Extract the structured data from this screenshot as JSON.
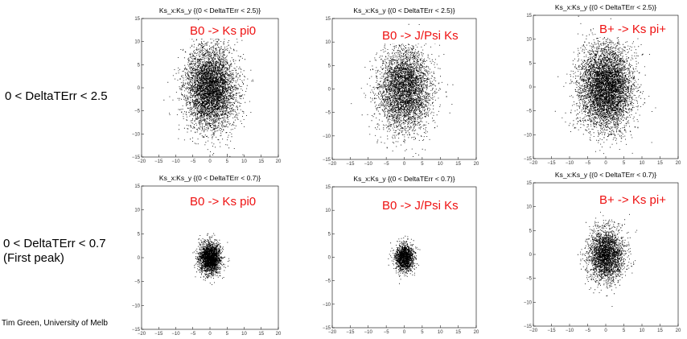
{
  "row_labels": [
    [
      "0 < DeltaTErr < 2.5"
    ],
    [
      "0 < DeltaTErr < 0.7",
      "(First peak)"
    ]
  ],
  "footer": "Tim Green, University of Melb",
  "colors": {
    "decay_label": "#ee1111",
    "points": "#000000",
    "frame": "#000000"
  },
  "chart_data": [
    {
      "type": "scatter",
      "title": "Ks_x:Ks_y {(0 < DeltaTErr < 2.5)}",
      "decay": "B0 -> Ks pi0",
      "xlim": [
        -20,
        20
      ],
      "ylim": [
        -15,
        15
      ],
      "xticks": [
        -20,
        -15,
        -10,
        -5,
        0,
        5,
        10,
        15,
        20
      ],
      "yticks": [
        -15,
        -10,
        -5,
        0,
        5,
        10,
        15
      ],
      "center": [
        0,
        0
      ],
      "spread_x": 3.6,
      "spread_y": 4.4,
      "n_points": 5000,
      "x_edge_labels_visible": true
    },
    {
      "type": "scatter",
      "title": "Ks_x:Ks_y {(0 < DeltaTErr < 2.5)}",
      "decay": "B0 -> J/Psi Ks",
      "xlim": [
        -20,
        20
      ],
      "ylim": [
        -15,
        15
      ],
      "xticks": [
        -20,
        -15,
        -10,
        -5,
        0,
        5,
        10,
        15,
        20
      ],
      "yticks": [
        -15,
        -10,
        -5,
        0,
        5,
        10,
        15
      ],
      "center": [
        0,
        0
      ],
      "spread_x": 3.6,
      "spread_y": 4.4,
      "n_points": 4000,
      "x_edge_labels_visible": true
    },
    {
      "type": "scatter",
      "title": "Ks_x:Ks_y {(0 < DeltaTErr < 2.5)}",
      "decay": "B+ -> Ks pi+",
      "xlim": [
        -20,
        20
      ],
      "ylim": [
        -15,
        15
      ],
      "xticks": [
        -20,
        -15,
        -10,
        -5,
        0,
        5,
        10,
        15,
        20
      ],
      "yticks": [
        -15,
        -10,
        -5,
        0,
        5,
        10,
        15
      ],
      "center": [
        0,
        0
      ],
      "spread_x": 3.6,
      "spread_y": 4.4,
      "n_points": 5500,
      "x_edge_labels_visible": false
    },
    {
      "type": "scatter",
      "title": "Ks_x:Ks_y {(0 < DeltaTErr < 0.7)}",
      "decay": "B0 -> Ks pi0",
      "xlim": [
        -20,
        20
      ],
      "ylim": [
        -15,
        15
      ],
      "xticks": [
        -20,
        -15,
        -10,
        -5,
        0,
        5,
        10,
        15,
        20
      ],
      "yticks": [
        -15,
        -10,
        -5,
        0,
        5,
        10,
        15
      ],
      "center": [
        0,
        0
      ],
      "spread_x": 1.6,
      "spread_y": 1.6,
      "n_points": 2400,
      "x_edge_labels_visible": true
    },
    {
      "type": "scatter",
      "title": "Ks_x:Ks_y {(0 < DeltaTErr < 0.7)}",
      "decay": "B0 -> J/Psi Ks",
      "xlim": [
        -20,
        20
      ],
      "ylim": [
        -15,
        15
      ],
      "xticks": [
        -20,
        -15,
        -10,
        -5,
        0,
        5,
        10,
        15,
        20
      ],
      "yticks": [
        -15,
        -10,
        -5,
        0,
        5,
        10,
        15
      ],
      "center": [
        0,
        0
      ],
      "spread_x": 1.3,
      "spread_y": 1.4,
      "n_points": 1500,
      "x_edge_labels_visible": true
    },
    {
      "type": "scatter",
      "title": "Ks_x:Ks_y {(0 < DeltaTErr < 0.7)}",
      "decay": "B+ -> Ks pi+",
      "xlim": [
        -20,
        20
      ],
      "ylim": [
        -15,
        15
      ],
      "xticks": [
        -20,
        -15,
        -10,
        -5,
        0,
        5,
        10,
        15,
        20
      ],
      "yticks": [
        -15,
        -10,
        -5,
        0,
        5,
        10,
        15
      ],
      "center": [
        0,
        0
      ],
      "spread_x": 2.4,
      "spread_y": 2.7,
      "n_points": 2800,
      "x_edge_labels_visible": true
    }
  ]
}
